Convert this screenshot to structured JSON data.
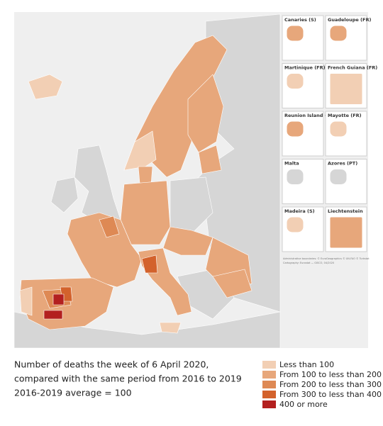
{
  "map": {
    "insets": [
      "Canaries (S)",
      "Guadeloupe (FR)",
      "Martinique (FR)",
      "French Guiana (FR)",
      "Reunion Island (FR)",
      "Mayotte (FR)",
      "Malta",
      "Azores (PT)",
      "Madeira (S)",
      "Liechtenstein"
    ],
    "credits": [
      "Administrative boundaries: © EuroGeographics © UN-FAO © Turkstat",
      "Cartography: Eurostat — GISCO, 04/2020"
    ]
  },
  "caption": [
    "Number of deaths the week of 6 April 2020,",
    "compared with the same period from 2016 to 2019",
    "2016-2019 average = 100"
  ],
  "legend": [
    {
      "label": "Less than 100",
      "color": "#f2cfb4"
    },
    {
      "label": "From 100 to less than 200",
      "color": "#e7a77b"
    },
    {
      "label": "From 200 to less than 300",
      "color": "#de8954"
    },
    {
      "label": "From 300 to less than 400",
      "color": "#d3622c"
    },
    {
      "label": "400 or more",
      "color": "#b3201f"
    }
  ]
}
